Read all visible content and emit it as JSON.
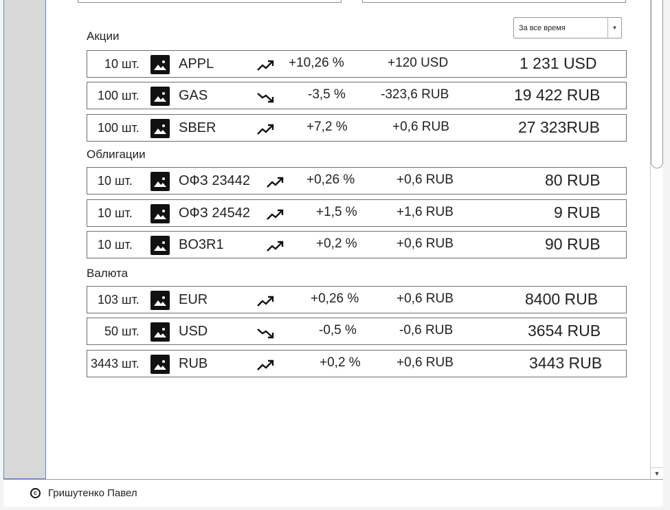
{
  "period_select": {
    "value": "За все время"
  },
  "sections": [
    {
      "title": "Акции",
      "rows": [
        {
          "qty": "10 шт.",
          "ticker": "APPL",
          "trend": "up",
          "pct": "+10,26 %",
          "change": "+120 USD",
          "total": "1 231 USD"
        },
        {
          "qty": "100 шт.",
          "ticker": "GAS",
          "trend": "down",
          "pct": "-3,5 %",
          "change": "-323,6 RUB",
          "total": "19 422 RUB"
        },
        {
          "qty": "100 шт.",
          "ticker": "SBER",
          "trend": "up",
          "pct": "+7,2 %",
          "change": "+0,6 RUB",
          "total": "27 323RUB"
        }
      ]
    },
    {
      "title": "Облигации",
      "rows": [
        {
          "qty": "10 шт.",
          "ticker": "ОФЗ 23442",
          "trend": "up",
          "pct": "+0,26 %",
          "change": "+0,6 RUB",
          "total": "80 RUB"
        },
        {
          "qty": "10 шт.",
          "ticker": "ОФЗ 24542",
          "trend": "up",
          "pct": "+1,5 %",
          "change": "+1,6 RUB",
          "total": "9 RUB"
        },
        {
          "qty": "10 шт.",
          "ticker": "BO3R1",
          "trend": "up",
          "pct": "+0,2 %",
          "change": "+0,6 RUB",
          "total": "90 RUB"
        }
      ]
    },
    {
      "title": "Валюта",
      "rows": [
        {
          "qty": "103 шт.",
          "ticker": "EUR",
          "trend": "up",
          "pct": "+0,26 %",
          "change": "+0,6 RUB",
          "total": "8400 RUB"
        },
        {
          "qty": "50 шт.",
          "ticker": "USD",
          "trend": "down",
          "pct": "-0,5 %",
          "change": "-0,6 RUB",
          "total": "3654 RUB"
        },
        {
          "qty": "3443 шт.",
          "ticker": "RUB",
          "trend": "up",
          "pct": "+0,2 %",
          "change": "+0,6 RUB",
          "total": "3443 RUB"
        }
      ]
    }
  ],
  "footer": {
    "copyright_symbol": "c",
    "author": "Гришутенко Павел"
  }
}
